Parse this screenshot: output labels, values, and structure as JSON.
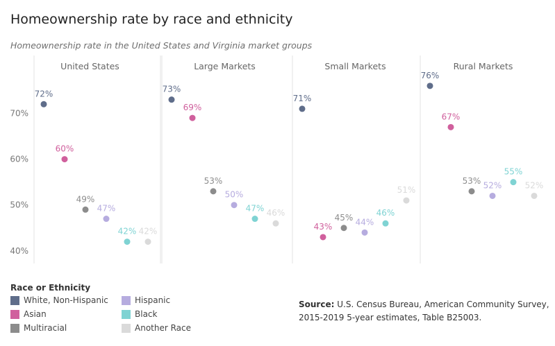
{
  "title": "Homeownership rate by race and ethnicity",
  "subtitle": "Homeownership rate in the United States and Virginia market groups",
  "legend_title": "Race or Ethnicity",
  "source_label": "Source:",
  "source_text": "U.S. Census Bureau, American Community Survey, 2015-2019 5-year estimates, Table B25003.",
  "colors": {
    "white_non_hispanic": "#5f6d8a",
    "asian": "#d0609d",
    "multiracial": "#8c8c8c",
    "hispanic": "#b6acdf",
    "black": "#7fd3d3",
    "another_race": "#dadada"
  },
  "chart_data": {
    "type": "scatter",
    "panels": [
      "United States",
      "Large Markets",
      "Small Markets",
      "Rural Markets"
    ],
    "ylim": [
      37,
      80
    ],
    "yticks": [
      40,
      50,
      60,
      70
    ],
    "ytick_labels": [
      "40%",
      "50%",
      "60%",
      "70%"
    ],
    "grid": false,
    "legend_position": "bottom-left",
    "series": [
      {
        "name": "White, Non-Hispanic",
        "color": "#5f6d8a",
        "values": [
          72,
          73,
          71,
          76
        ]
      },
      {
        "name": "Asian",
        "color": "#d0609d",
        "values": [
          60,
          69,
          43,
          67
        ]
      },
      {
        "name": "Multiracial",
        "color": "#8c8c8c",
        "values": [
          49,
          53,
          45,
          53
        ]
      },
      {
        "name": "Hispanic",
        "color": "#b6acdf",
        "values": [
          47,
          50,
          44,
          52
        ]
      },
      {
        "name": "Black",
        "color": "#7fd3d3",
        "values": [
          42,
          47,
          46,
          55
        ]
      },
      {
        "name": "Another Race",
        "color": "#dadada",
        "values": [
          42,
          46,
          51,
          52
        ]
      }
    ],
    "data_labels": [
      [
        "72%",
        "73%",
        "71%",
        "76%"
      ],
      [
        "60%",
        "69%",
        "43%",
        "67%"
      ],
      [
        "49%",
        "53%",
        "45%",
        "53%"
      ],
      [
        "47%",
        "50%",
        "44%",
        "52%"
      ],
      [
        "42%",
        "47%",
        "46%",
        "55%"
      ],
      [
        "42%",
        "46%",
        "51%",
        "52%"
      ]
    ]
  }
}
